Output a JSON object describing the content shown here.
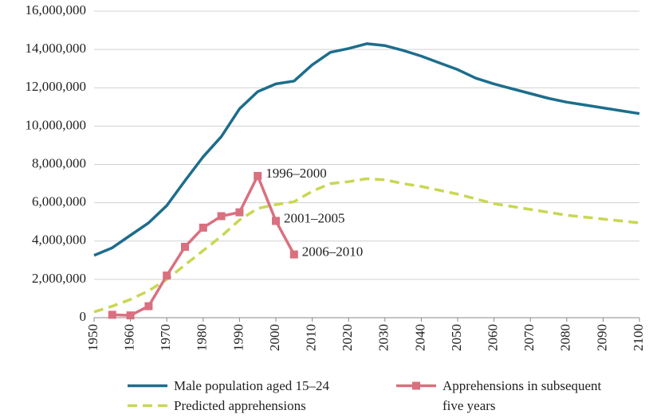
{
  "chart_data": {
    "type": "line",
    "x": [
      1950,
      1955,
      1960,
      1965,
      1970,
      1975,
      1980,
      1985,
      1990,
      1995,
      2000,
      2005,
      2010,
      2015,
      2020,
      2025,
      2030,
      2035,
      2040,
      2045,
      2050,
      2055,
      2060,
      2065,
      2070,
      2075,
      2080,
      2085,
      2090,
      2095,
      2100
    ],
    "series": [
      {
        "name": "Male population aged 15–24",
        "color": "#1d6d8c",
        "style": "solid",
        "values": [
          3250000,
          3650000,
          4300000,
          4950000,
          5850000,
          7150000,
          8400000,
          9450000,
          10900000,
          11800000,
          12200000,
          12350000,
          13200000,
          13850000,
          14050000,
          14300000,
          14200000,
          13950000,
          13650000,
          13300000,
          12950000,
          12500000,
          12200000,
          11950000,
          11700000,
          11450000,
          11250000,
          11100000,
          10950000,
          10800000,
          10650000
        ]
      },
      {
        "name": "Predicted apprehensions",
        "color": "#c9d752",
        "style": "dashed",
        "values": [
          300000,
          600000,
          950000,
          1400000,
          2000000,
          2750000,
          3500000,
          4250000,
          5100000,
          5700000,
          5900000,
          6050000,
          6600000,
          7000000,
          7100000,
          7250000,
          7200000,
          7000000,
          6850000,
          6650000,
          6450000,
          6200000,
          5950000,
          5800000,
          5650000,
          5500000,
          5350000,
          5250000,
          5150000,
          5050000,
          4950000
        ]
      },
      {
        "name": "Apprehensions in subsequent five years",
        "color": "#d9707f",
        "style": "marker",
        "values": [
          null,
          150000,
          120000,
          600000,
          2200000,
          3700000,
          4700000,
          5300000,
          5500000,
          7400000,
          5050000,
          3300000,
          null,
          null,
          null,
          null,
          null,
          null,
          null,
          null,
          null,
          null,
          null,
          null,
          null,
          null,
          null,
          null,
          null,
          null,
          null
        ]
      }
    ],
    "annotations": [
      "1996–2000",
      "2001–2005",
      "2006–2010"
    ],
    "xlim": [
      1950,
      2100
    ],
    "xticks": [
      1950,
      1960,
      1970,
      1980,
      1990,
      2000,
      2010,
      2020,
      2030,
      2040,
      2050,
      2060,
      2070,
      2080,
      2090,
      2100
    ],
    "ylim": [
      0,
      16000000
    ],
    "yticks": [
      0,
      {
        "value": 2000000,
        "label": "2,000,000"
      },
      {
        "value": 4000000,
        "label": "4,000,000"
      },
      {
        "value": 6000000,
        "label": "6,000,000"
      },
      {
        "value": 8000000,
        "label": "8,000,000"
      },
      {
        "value": 10000000,
        "label": "10,000,000"
      },
      {
        "value": 12000000,
        "label": "12,000,000"
      },
      {
        "value": 14000000,
        "label": "14,000,000"
      },
      {
        "value": 16000000,
        "label": "16,000,000"
      }
    ],
    "grid": true,
    "legend": "bottom"
  }
}
